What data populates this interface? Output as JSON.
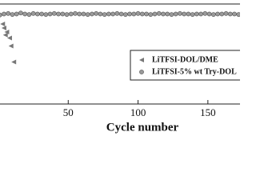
{
  "chart_data": {
    "type": "scatter",
    "x_label": "Cycle number",
    "xlim": [
      0,
      173
    ],
    "ylim": [
      0,
      100
    ],
    "xticks": [
      50,
      100,
      150
    ],
    "legend": "right",
    "series": [
      {
        "name": "LiTFSI-DOL/DME",
        "color": "#777777",
        "marker": "triangle",
        "x": [
          3,
          4,
          5,
          6,
          8,
          9,
          11
        ],
        "values": [
          80,
          76,
          69,
          72,
          66,
          58,
          42
        ]
      },
      {
        "name": "LiTFSI-5% wt Try-DOL",
        "color": "#9a9a9a",
        "marker": "circle",
        "x": [
          1,
          4,
          7,
          10,
          13,
          16,
          19,
          22,
          25,
          28,
          31,
          34,
          37,
          40,
          43,
          46,
          49,
          52,
          55,
          58,
          61,
          64,
          67,
          70,
          73,
          76,
          79,
          82,
          85,
          88,
          91,
          94,
          97,
          100,
          103,
          106,
          109,
          112,
          115,
          118,
          121,
          124,
          127,
          130,
          133,
          136,
          139,
          142,
          145,
          148,
          151,
          154,
          157,
          160,
          163,
          166,
          169,
          172
        ],
        "values": [
          89,
          90,
          90.5,
          89.5,
          90,
          91,
          90,
          89.5,
          90.5,
          90,
          90,
          89.5,
          90,
          90.5,
          90,
          90,
          89.5,
          90,
          90.5,
          90,
          90,
          89.5,
          90,
          90.5,
          90,
          89.5,
          90,
          90,
          90.5,
          90,
          89.5,
          90,
          90,
          90.5,
          90,
          90,
          89.5,
          90,
          90.5,
          90,
          90,
          89.5,
          90,
          90.5,
          90,
          90,
          89.5,
          90,
          90,
          90.5,
          90,
          89.5,
          90,
          90,
          90.5,
          90,
          90,
          89.5
        ]
      }
    ]
  }
}
